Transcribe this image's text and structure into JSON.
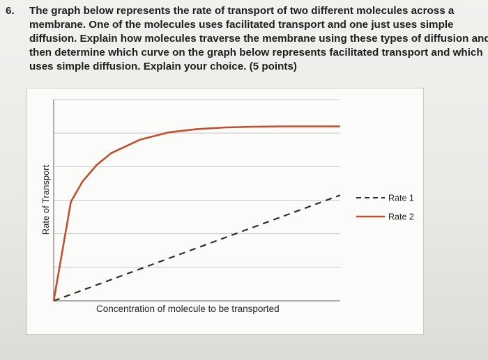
{
  "question": {
    "number": "6.",
    "lines": [
      "The graph below represents the rate of transport of two different molecules across a",
      "membrane.  One of the molecules uses facilitated transport and one just uses simple",
      "diffusion.  Explain how molecules traverse the membrane using these types of diffusion and",
      "then determine which curve on the graph below represents facilitated transport and which",
      "uses simple diffusion.  Explain your choice.  (5 points)"
    ]
  },
  "colors": {
    "rate1": "#2f2f2f",
    "rate2": "#c0502e",
    "grid": "#c8c8c8",
    "axis": "#7a7a7a"
  },
  "chart_data": {
    "type": "line",
    "title": "",
    "xlabel": "Concentration of molecule to be transported",
    "ylabel": "Rate of Transport",
    "xlim": [
      0,
      10
    ],
    "ylim": [
      0,
      6
    ],
    "grid": "horizontal",
    "legend_position": "right",
    "series": [
      {
        "name": "Rate 1",
        "style": "dashed",
        "color": "#2f2f2f",
        "x": [
          0,
          10
        ],
        "y": [
          0,
          3.15
        ]
      },
      {
        "name": "Rate 2",
        "style": "solid",
        "color": "#c0502e",
        "x": [
          0,
          0.6,
          1.0,
          1.5,
          2.0,
          3.0,
          4.0,
          5.0,
          6.0,
          7.0,
          8.0,
          9.0,
          10.0
        ],
        "y": [
          0,
          2.95,
          3.55,
          4.05,
          4.4,
          4.8,
          5.02,
          5.12,
          5.17,
          5.19,
          5.2,
          5.2,
          5.2
        ]
      }
    ]
  }
}
